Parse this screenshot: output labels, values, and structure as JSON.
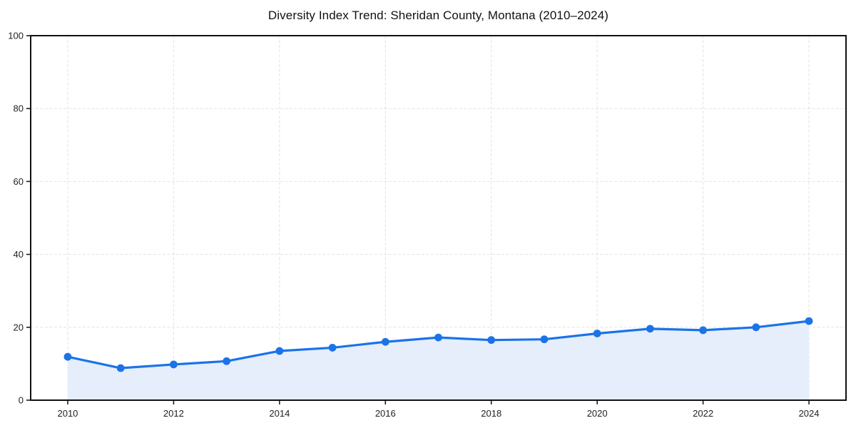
{
  "page": {
    "background": "#ffffff"
  },
  "chart_data": {
    "type": "line",
    "title": "Diversity Index Trend: Sheridan County, Montana (2010–2024)",
    "x": [
      2010,
      2011,
      2012,
      2013,
      2014,
      2015,
      2016,
      2017,
      2018,
      2019,
      2020,
      2021,
      2022,
      2023,
      2024
    ],
    "values": [
      11.9,
      8.8,
      9.8,
      10.7,
      13.5,
      14.4,
      16.0,
      17.2,
      16.5,
      16.7,
      18.3,
      19.6,
      19.2,
      20.0,
      21.7
    ],
    "xlabel": "",
    "ylabel": "",
    "xlim": [
      2009.3,
      2024.7
    ],
    "ylim": [
      0,
      100
    ],
    "xticks": [
      2010,
      2012,
      2014,
      2016,
      2018,
      2020,
      2022,
      2024
    ],
    "yticks": [
      0,
      20,
      40,
      60,
      80,
      100
    ],
    "grid": true,
    "grid_style": "dashed",
    "legend_position": "none",
    "marker": "circle",
    "area_fill": true,
    "colors": {
      "line": "#1a73e8",
      "marker": "#1a73e8",
      "fill": "#e6eefc",
      "grid": "#e2e2e2",
      "axis": "#111111",
      "tick_label": "#222222",
      "title": "#111111"
    }
  }
}
